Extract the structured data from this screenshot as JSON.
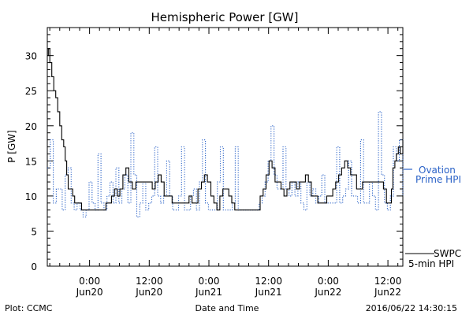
{
  "chart_data": {
    "type": "line",
    "title": "Hemispheric Power [GW]",
    "ylabel": "P [GW]",
    "xlabel": "Date and Time",
    "ylim": [
      0,
      34
    ],
    "yticks": [
      0,
      5,
      10,
      15,
      20,
      25,
      30
    ],
    "xlim": [
      -8.5,
      63.0
    ],
    "x_units": "hours since 2016-06-20 00:00 UT",
    "xticks": [
      {
        "x": 0,
        "time": "0:00",
        "date": "Jun20"
      },
      {
        "x": 12,
        "time": "12:00",
        "date": "Jun20"
      },
      {
        "x": 24,
        "time": "0:00",
        "date": "Jun21"
      },
      {
        "x": 36,
        "time": "12:00",
        "date": "Jun21"
      },
      {
        "x": 48,
        "time": "0:00",
        "date": "Jun22"
      },
      {
        "x": 60,
        "time": "12:00",
        "date": "Jun22"
      }
    ],
    "grid": false,
    "legend": "right",
    "series": [
      {
        "name": "SWPC 5-min HPI",
        "style": "solid",
        "color": "#000000",
        "points": [
          [
            -8.5,
            30
          ],
          [
            -8.3,
            31
          ],
          [
            -8.0,
            29
          ],
          [
            -7.6,
            27
          ],
          [
            -7.2,
            25
          ],
          [
            -6.8,
            24
          ],
          [
            -6.4,
            22
          ],
          [
            -6.0,
            20
          ],
          [
            -5.6,
            18
          ],
          [
            -5.2,
            17
          ],
          [
            -4.9,
            15
          ],
          [
            -4.6,
            13
          ],
          [
            -4.3,
            11
          ],
          [
            -3.8,
            11
          ],
          [
            -3.4,
            10
          ],
          [
            -3.0,
            9
          ],
          [
            -2.3,
            9
          ],
          [
            -1.6,
            8
          ],
          [
            1.0,
            8
          ],
          [
            2.8,
            8
          ],
          [
            3.3,
            9
          ],
          [
            3.8,
            9
          ],
          [
            4.4,
            10
          ],
          [
            5.0,
            11
          ],
          [
            5.6,
            10
          ],
          [
            6.1,
            11
          ],
          [
            6.7,
            13
          ],
          [
            7.3,
            14
          ],
          [
            7.9,
            12
          ],
          [
            8.6,
            11
          ],
          [
            9.3,
            12
          ],
          [
            10.0,
            12
          ],
          [
            12.0,
            12
          ],
          [
            12.6,
            11
          ],
          [
            13.2,
            12
          ],
          [
            13.8,
            13
          ],
          [
            14.4,
            12
          ],
          [
            15.0,
            10
          ],
          [
            16.0,
            10
          ],
          [
            16.6,
            9
          ],
          [
            17.5,
            9
          ],
          [
            18.4,
            9
          ],
          [
            19.4,
            9
          ],
          [
            20.0,
            10
          ],
          [
            20.6,
            9
          ],
          [
            21.2,
            9
          ],
          [
            21.8,
            11
          ],
          [
            22.5,
            12
          ],
          [
            23.1,
            13
          ],
          [
            23.7,
            12
          ],
          [
            24.4,
            10
          ],
          [
            25.0,
            9
          ],
          [
            25.6,
            8
          ],
          [
            26.2,
            10
          ],
          [
            26.8,
            11
          ],
          [
            27.4,
            11
          ],
          [
            28.0,
            10
          ],
          [
            28.6,
            9
          ],
          [
            29.2,
            8
          ],
          [
            33.7,
            8
          ],
          [
            34.3,
            10
          ],
          [
            34.9,
            11
          ],
          [
            35.5,
            13
          ],
          [
            36.1,
            15
          ],
          [
            36.7,
            14
          ],
          [
            37.3,
            12
          ],
          [
            37.9,
            12
          ],
          [
            38.5,
            11
          ],
          [
            39.1,
            10
          ],
          [
            39.7,
            11
          ],
          [
            40.3,
            12
          ],
          [
            41.0,
            12
          ],
          [
            41.6,
            11
          ],
          [
            42.2,
            12
          ],
          [
            42.8,
            12
          ],
          [
            43.4,
            13
          ],
          [
            44.0,
            12
          ],
          [
            44.6,
            10
          ],
          [
            45.3,
            10
          ],
          [
            45.9,
            9
          ],
          [
            46.5,
            9
          ],
          [
            47.1,
            9
          ],
          [
            47.7,
            10
          ],
          [
            48.3,
            10
          ],
          [
            48.9,
            11
          ],
          [
            49.5,
            12
          ],
          [
            50.1,
            13
          ],
          [
            50.7,
            14
          ],
          [
            51.3,
            15
          ],
          [
            51.9,
            14
          ],
          [
            52.5,
            13
          ],
          [
            53.1,
            13
          ],
          [
            53.7,
            11
          ],
          [
            54.3,
            11
          ],
          [
            54.9,
            12
          ],
          [
            55.5,
            12
          ],
          [
            58.5,
            12
          ],
          [
            59.1,
            11
          ],
          [
            59.7,
            9
          ],
          [
            60.3,
            9
          ],
          [
            60.7,
            11
          ],
          [
            61.0,
            14
          ],
          [
            61.4,
            15
          ],
          [
            61.7,
            16
          ],
          [
            62.1,
            17
          ],
          [
            62.5,
            16
          ],
          [
            63.0,
            18
          ]
        ]
      },
      {
        "name": "Ovation Prime HPI",
        "style": "dotted",
        "color": "#2a62c7",
        "points": [
          [
            -8.5,
            14
          ],
          [
            -7.9,
            18
          ],
          [
            -7.3,
            9
          ],
          [
            -6.7,
            11
          ],
          [
            -6.1,
            11
          ],
          [
            -5.5,
            8
          ],
          [
            -4.9,
            13
          ],
          [
            -4.3,
            14
          ],
          [
            -3.7,
            9
          ],
          [
            -3.1,
            8
          ],
          [
            -2.5,
            9
          ],
          [
            -1.9,
            8
          ],
          [
            -1.3,
            7
          ],
          [
            -0.7,
            8
          ],
          [
            -0.1,
            12
          ],
          [
            0.5,
            9
          ],
          [
            1.1,
            8
          ],
          [
            1.7,
            16
          ],
          [
            2.3,
            9
          ],
          [
            2.9,
            8
          ],
          [
            3.5,
            10
          ],
          [
            4.1,
            12
          ],
          [
            4.7,
            9
          ],
          [
            5.3,
            14
          ],
          [
            5.9,
            9
          ],
          [
            6.5,
            11
          ],
          [
            7.1,
            13
          ],
          [
            7.7,
            9
          ],
          [
            8.3,
            19
          ],
          [
            8.9,
            13
          ],
          [
            9.5,
            7
          ],
          [
            10.1,
            9
          ],
          [
            10.7,
            12
          ],
          [
            11.3,
            8
          ],
          [
            11.9,
            9
          ],
          [
            12.5,
            10
          ],
          [
            13.1,
            17
          ],
          [
            13.7,
            10
          ],
          [
            14.3,
            9
          ],
          [
            14.9,
            10
          ],
          [
            15.5,
            15
          ],
          [
            16.1,
            10
          ],
          [
            16.7,
            8
          ],
          [
            17.3,
            8
          ],
          [
            17.9,
            10
          ],
          [
            18.5,
            17
          ],
          [
            19.1,
            8
          ],
          [
            19.7,
            8
          ],
          [
            20.3,
            10
          ],
          [
            20.9,
            11
          ],
          [
            21.5,
            8
          ],
          [
            22.1,
            12
          ],
          [
            22.7,
            18
          ],
          [
            23.3,
            9
          ],
          [
            23.9,
            8
          ],
          [
            24.5,
            8
          ],
          [
            25.1,
            8
          ],
          [
            25.7,
            12
          ],
          [
            26.3,
            17
          ],
          [
            26.9,
            8
          ],
          [
            27.5,
            8
          ],
          [
            28.1,
            8
          ],
          [
            28.7,
            9
          ],
          [
            29.3,
            17
          ],
          [
            29.9,
            8
          ],
          [
            30.5,
            8
          ],
          [
            31.1,
            8
          ],
          [
            31.7,
            8
          ],
          [
            32.3,
            8
          ],
          [
            32.9,
            8
          ],
          [
            33.5,
            8
          ],
          [
            34.1,
            9
          ],
          [
            34.7,
            10
          ],
          [
            35.3,
            12
          ],
          [
            35.9,
            15
          ],
          [
            36.5,
            20
          ],
          [
            37.1,
            13
          ],
          [
            37.7,
            11
          ],
          [
            38.3,
            11
          ],
          [
            38.9,
            17
          ],
          [
            39.5,
            11
          ],
          [
            40.1,
            10
          ],
          [
            40.7,
            12
          ],
          [
            41.3,
            10
          ],
          [
            41.9,
            12
          ],
          [
            42.5,
            9
          ],
          [
            43.1,
            8
          ],
          [
            43.7,
            12
          ],
          [
            44.3,
            10
          ],
          [
            44.9,
            11
          ],
          [
            45.5,
            9
          ],
          [
            46.1,
            10
          ],
          [
            46.7,
            13
          ],
          [
            47.3,
            9
          ],
          [
            47.9,
            9
          ],
          [
            48.5,
            9
          ],
          [
            49.1,
            9
          ],
          [
            49.7,
            17
          ],
          [
            50.3,
            9
          ],
          [
            50.9,
            10
          ],
          [
            51.5,
            11
          ],
          [
            52.1,
            15
          ],
          [
            52.7,
            10
          ],
          [
            53.3,
            10
          ],
          [
            53.9,
            9
          ],
          [
            54.5,
            18
          ],
          [
            55.1,
            9
          ],
          [
            55.7,
            9
          ],
          [
            56.3,
            12
          ],
          [
            56.9,
            10
          ],
          [
            57.5,
            8
          ],
          [
            58.1,
            22
          ],
          [
            58.7,
            13
          ],
          [
            59.3,
            9
          ],
          [
            59.9,
            8
          ],
          [
            60.5,
            10
          ],
          [
            61.1,
            17
          ],
          [
            61.7,
            15
          ],
          [
            62.3,
            18
          ],
          [
            63.0,
            10
          ]
        ]
      }
    ]
  },
  "legend": {
    "ovation_line1": "Ovation",
    "ovation_line2": "Prime HPI",
    "swpc_line1": "SWPC",
    "swpc_line2": "5-min HPI"
  },
  "footer": {
    "left": "Plot: CCMC",
    "center": "Date and Time",
    "right": "2016/06/22 14:30:15"
  },
  "colors": {
    "ovation": "#2a62c7",
    "swpc": "#000000"
  }
}
